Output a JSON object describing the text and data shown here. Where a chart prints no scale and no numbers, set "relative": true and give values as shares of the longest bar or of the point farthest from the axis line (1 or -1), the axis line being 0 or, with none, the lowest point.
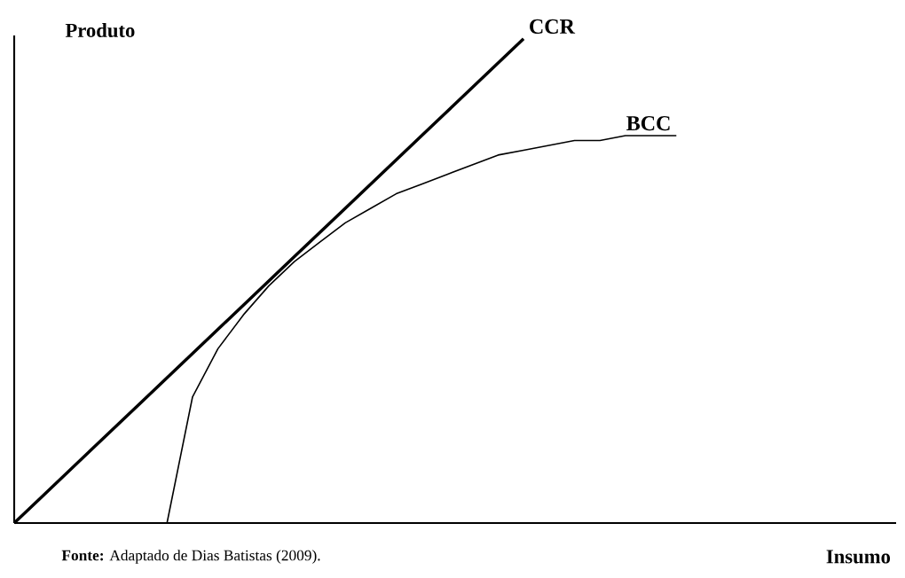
{
  "chart_data": {
    "type": "line",
    "relative": true,
    "xlabel": "Insumo",
    "ylabel": "Produto",
    "annotations": [
      "**Fonte:** Adaptado de Dias Batistas (2009)."
    ],
    "categories": [
      null,
      null,
      null,
      null,
      null,
      null,
      null,
      null,
      null,
      null,
      null,
      null,
      null,
      null,
      null,
      null,
      null,
      null,
      null,
      null,
      null,
      null,
      null,
      null,
      null,
      null,
      null,
      null,
      null,
      null,
      null,
      null,
      null,
      null,
      null
    ],
    "series": [
      {
        "name": "CCR",
        "color": "#000000",
        "values": [
          0,
          0.05,
          0.1,
          0.15,
          0.2,
          0.25,
          0.3,
          0.35,
          0.4,
          0.45,
          0.5,
          0.55,
          0.6,
          0.65,
          0.7,
          0.75,
          0.8,
          0.85,
          0.9,
          0.95,
          1,
          null,
          null,
          null,
          null,
          null,
          null,
          null,
          null,
          null,
          null,
          null,
          null,
          null,
          null
        ]
      },
      {
        "name": "BCC",
        "color": "#000000",
        "values": [
          null,
          null,
          null,
          null,
          null,
          null,
          0,
          0.26,
          0.36,
          0.43,
          0.49,
          0.54,
          0.58,
          0.62,
          0.65,
          0.68,
          0.7,
          0.72,
          0.74,
          0.76,
          0.77,
          0.78,
          0.79,
          0.79,
          0.8,
          0.8,
          0.8,
          null,
          null,
          null,
          null,
          null,
          null,
          null,
          null
        ]
      }
    ],
    "legend": false,
    "marker": "none",
    "line_style": "solid"
  }
}
